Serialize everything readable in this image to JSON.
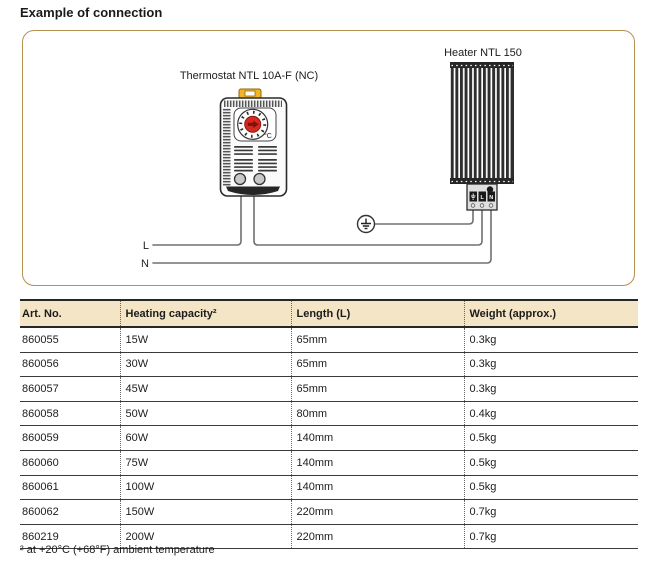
{
  "page": {
    "title": "Example of connection",
    "footnote": "² at +20°C (+68°F) ambient temperature"
  },
  "diagram": {
    "thermostat_label": "Thermostat NTL 10A-F (NC)",
    "heater_label": "Heater NTL 150",
    "dial_unit": "°C",
    "line_labels": {
      "live": "L",
      "neutral": "N"
    },
    "heater_terminals": {
      "ground": "ground-symbol",
      "live": "L",
      "neutral": "N"
    }
  },
  "table": {
    "headers": [
      "Art. No.",
      "Heating capacity²",
      "Length (L)",
      "Weight (approx.)"
    ],
    "rows": [
      [
        "860055",
        "15W",
        "65mm",
        "0.3kg"
      ],
      [
        "860056",
        "30W",
        "65mm",
        "0.3kg"
      ],
      [
        "860057",
        "45W",
        "65mm",
        "0.3kg"
      ],
      [
        "860058",
        "50W",
        "80mm",
        "0.4kg"
      ],
      [
        "860059",
        "60W",
        "140mm",
        "0.5kg"
      ],
      [
        "860060",
        "75W",
        "140mm",
        "0.5kg"
      ],
      [
        "860061",
        "100W",
        "140mm",
        "0.5kg"
      ],
      [
        "860062",
        "150W",
        "220mm",
        "0.7kg"
      ],
      [
        "860219",
        "200W",
        "220mm",
        "0.7kg"
      ]
    ]
  },
  "colors": {
    "box_border": "#b5904f",
    "table_header_bg": "#f3e5c6",
    "knob_red": "#d42b1e",
    "clip_yellow": "#f2b32a",
    "wire_gray": "#707070",
    "text": "#1c1c1c"
  }
}
